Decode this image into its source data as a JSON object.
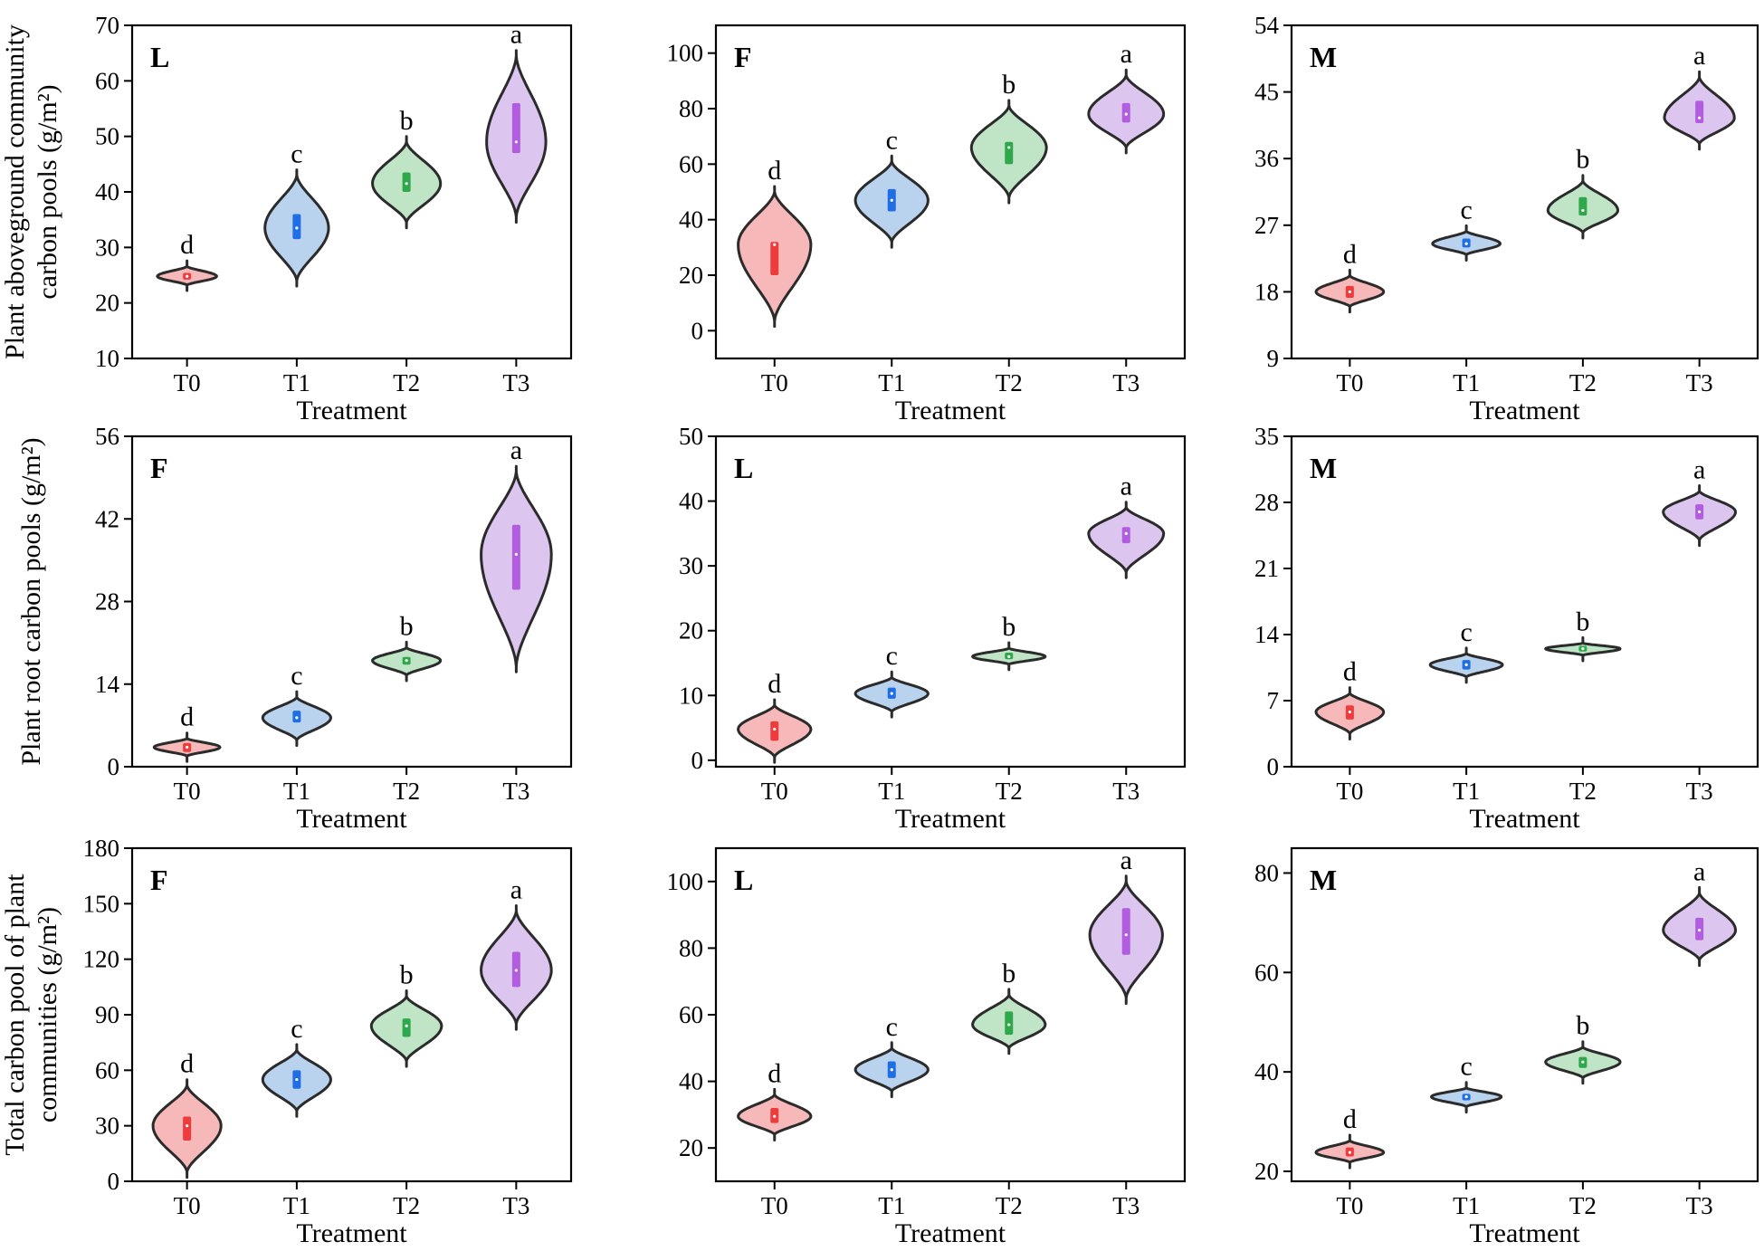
{
  "figure": {
    "row_ylabels": [
      [
        "Plant aboveground community",
        "carbon pools (g/m²)"
      ],
      [
        "Plant root carbon pools (g/m²)"
      ],
      [
        "Total carbon pool of plant",
        "communities (g/m²)"
      ]
    ]
  },
  "colors": {
    "T0": {
      "fill": "#f6b8b8",
      "bar": "#ee3b3b"
    },
    "T1": {
      "fill": "#b9d2ee",
      "bar": "#1f6ee6"
    },
    "T2": {
      "fill": "#bfe5c6",
      "bar": "#2ea84a"
    },
    "T3": {
      "fill": "#dcc5ef",
      "bar": "#b25ce0"
    },
    "outline": "#2b2b2b"
  },
  "chart_data": [
    {
      "type": "violin",
      "row": 0,
      "col": 0,
      "tag": "L",
      "xlabel": "Treatment",
      "ylabel": "Plant aboveground community carbon pools (g/m²)",
      "categories": [
        "T0",
        "T1",
        "T2",
        "T3"
      ],
      "ylim": [
        10,
        70
      ],
      "yticks": [
        10,
        20,
        30,
        40,
        50,
        60,
        70
      ],
      "violins": [
        {
          "median": 24.8,
          "q1": 24.2,
          "q3": 25.4,
          "min": 23.2,
          "max": 26.6,
          "width": 0.27,
          "shape": "even",
          "letter": "d"
        },
        {
          "median": 33.5,
          "q1": 31.5,
          "q3": 36.0,
          "min": 24.0,
          "max": 43.0,
          "width": 0.29,
          "shape": "even",
          "letter": "c"
        },
        {
          "median": 41.5,
          "q1": 40.0,
          "q3": 43.5,
          "min": 34.5,
          "max": 49.0,
          "width": 0.31,
          "shape": "even",
          "letter": "b"
        },
        {
          "median": 49.0,
          "q1": 47.0,
          "q3": 56.0,
          "min": 35.5,
          "max": 64.5,
          "width": 0.27,
          "shape": "even",
          "letter": "a"
        }
      ]
    },
    {
      "type": "violin",
      "row": 0,
      "col": 1,
      "tag": "F",
      "xlabel": "Treatment",
      "ylabel": "",
      "categories": [
        "T0",
        "T1",
        "T2",
        "T3"
      ],
      "ylim": [
        -10,
        110
      ],
      "yticks": [
        0,
        20,
        40,
        60,
        80,
        100
      ],
      "violins": [
        {
          "median": 31.0,
          "q1": 20.0,
          "q3": 32.0,
          "min": 3.5,
          "max": 50.0,
          "width": 0.31,
          "shape": "even",
          "letter": "d"
        },
        {
          "median": 47.0,
          "q1": 43.0,
          "q3": 51.0,
          "min": 32.0,
          "max": 61.0,
          "width": 0.31,
          "shape": "even",
          "letter": "c"
        },
        {
          "median": 66.0,
          "q1": 60.0,
          "q3": 68.0,
          "min": 48.0,
          "max": 81.0,
          "width": 0.32,
          "shape": "even",
          "letter": "b"
        },
        {
          "median": 78.0,
          "q1": 75.0,
          "q3": 82.0,
          "min": 66.0,
          "max": 92.0,
          "width": 0.32,
          "shape": "even",
          "letter": "a"
        }
      ]
    },
    {
      "type": "violin",
      "row": 0,
      "col": 2,
      "tag": "M",
      "xlabel": "Treatment",
      "ylabel": "",
      "categories": [
        "T0",
        "T1",
        "T2",
        "T3"
      ],
      "ylim": [
        9,
        54
      ],
      "yticks": [
        9,
        18,
        27,
        36,
        45,
        54
      ],
      "violins": [
        {
          "median": 18.0,
          "q1": 17.2,
          "q3": 18.8,
          "min": 16.0,
          "max": 20.2,
          "width": 0.29,
          "shape": "even",
          "letter": "d"
        },
        {
          "median": 24.5,
          "q1": 24.0,
          "q3": 25.2,
          "min": 23.0,
          "max": 26.2,
          "width": 0.29,
          "shape": "even",
          "letter": "c"
        },
        {
          "median": 29.0,
          "q1": 28.3,
          "q3": 30.8,
          "min": 26.0,
          "max": 33.0,
          "width": 0.3,
          "shape": "even",
          "letter": "b"
        },
        {
          "median": 41.5,
          "q1": 40.8,
          "q3": 43.8,
          "min": 38.0,
          "max": 47.0,
          "width": 0.3,
          "shape": "even",
          "letter": "a"
        }
      ]
    },
    {
      "type": "violin",
      "row": 1,
      "col": 0,
      "tag": "F",
      "xlabel": "Treatment",
      "ylabel": "Plant root carbon pools (g/m²)",
      "categories": [
        "T0",
        "T1",
        "T2",
        "T3"
      ],
      "ylim": [
        0,
        56
      ],
      "yticks": [
        0,
        14,
        28,
        42,
        56
      ],
      "violins": [
        {
          "median": 3.3,
          "q1": 2.5,
          "q3": 4.0,
          "min": 1.8,
          "max": 4.8,
          "width": 0.3,
          "shape": "even",
          "letter": "d"
        },
        {
          "median": 8.3,
          "q1": 7.5,
          "q3": 9.5,
          "min": 4.5,
          "max": 11.8,
          "width": 0.31,
          "shape": "even",
          "letter": "c"
        },
        {
          "median": 18.0,
          "q1": 17.3,
          "q3": 18.6,
          "min": 15.5,
          "max": 20.2,
          "width": 0.31,
          "shape": "even",
          "letter": "b"
        },
        {
          "median": 36.0,
          "q1": 30.0,
          "q3": 41.0,
          "min": 17.0,
          "max": 50.0,
          "width": 0.32,
          "shape": "even",
          "letter": "a"
        }
      ]
    },
    {
      "type": "violin",
      "row": 1,
      "col": 1,
      "tag": "L",
      "xlabel": "Treatment",
      "ylabel": "",
      "categories": [
        "T0",
        "T1",
        "T2",
        "T3"
      ],
      "ylim": [
        -1,
        50
      ],
      "yticks": [
        0,
        10,
        20,
        30,
        40,
        50
      ],
      "violins": [
        {
          "median": 4.8,
          "q1": 3.0,
          "q3": 6.0,
          "min": 0.5,
          "max": 8.5,
          "width": 0.31,
          "shape": "even",
          "letter": "d"
        },
        {
          "median": 10.3,
          "q1": 9.5,
          "q3": 11.2,
          "min": 7.5,
          "max": 12.8,
          "width": 0.31,
          "shape": "even",
          "letter": "c"
        },
        {
          "median": 16.0,
          "q1": 15.6,
          "q3": 16.6,
          "min": 14.8,
          "max": 17.3,
          "width": 0.31,
          "shape": "even",
          "letter": "b"
        },
        {
          "median": 35.0,
          "q1": 33.5,
          "q3": 36.0,
          "min": 29.0,
          "max": 39.0,
          "width": 0.32,
          "shape": "even",
          "letter": "a"
        }
      ]
    },
    {
      "type": "violin",
      "row": 1,
      "col": 2,
      "tag": "M",
      "xlabel": "Treatment",
      "ylabel": "",
      "categories": [
        "T0",
        "T1",
        "T2",
        "T3"
      ],
      "ylim": [
        0,
        35
      ],
      "yticks": [
        0,
        7,
        14,
        21,
        28,
        35
      ],
      "violins": [
        {
          "median": 5.8,
          "q1": 5.0,
          "q3": 6.5,
          "min": 3.5,
          "max": 7.8,
          "width": 0.29,
          "shape": "even",
          "letter": "d"
        },
        {
          "median": 10.8,
          "q1": 10.3,
          "q3": 11.3,
          "min": 9.5,
          "max": 12.0,
          "width": 0.31,
          "shape": "even",
          "letter": "c"
        },
        {
          "median": 12.5,
          "q1": 12.2,
          "q3": 12.8,
          "min": 11.8,
          "max": 13.1,
          "width": 0.32,
          "shape": "even",
          "letter": "b"
        },
        {
          "median": 27.0,
          "q1": 26.2,
          "q3": 27.8,
          "min": 24.0,
          "max": 29.2,
          "width": 0.31,
          "shape": "even",
          "letter": "a"
        }
      ]
    },
    {
      "type": "violin",
      "row": 2,
      "col": 0,
      "tag": "F",
      "xlabel": "Treatment",
      "ylabel": "Total carbon pool of plant communities (g/m²)",
      "categories": [
        "T0",
        "T1",
        "T2",
        "T3"
      ],
      "ylim": [
        0,
        180
      ],
      "yticks": [
        0,
        30,
        60,
        90,
        120,
        150,
        180
      ],
      "violins": [
        {
          "median": 30.0,
          "q1": 22.0,
          "q3": 35.0,
          "min": 5.0,
          "max": 52.0,
          "width": 0.31,
          "shape": "even",
          "letter": "d"
        },
        {
          "median": 55.0,
          "q1": 50.0,
          "q3": 60.0,
          "min": 38.0,
          "max": 71.0,
          "width": 0.31,
          "shape": "even",
          "letter": "c"
        },
        {
          "median": 84.0,
          "q1": 78.0,
          "q3": 88.0,
          "min": 65.0,
          "max": 100.0,
          "width": 0.32,
          "shape": "even",
          "letter": "b"
        },
        {
          "median": 114.0,
          "q1": 105.0,
          "q3": 124.0,
          "min": 85.0,
          "max": 146.0,
          "width": 0.32,
          "shape": "even",
          "letter": "a"
        }
      ]
    },
    {
      "type": "violin",
      "row": 2,
      "col": 1,
      "tag": "L",
      "xlabel": "Treatment",
      "ylabel": "",
      "categories": [
        "T0",
        "T1",
        "T2",
        "T3"
      ],
      "ylim": [
        10,
        110
      ],
      "yticks": [
        20,
        40,
        60,
        80,
        100
      ],
      "violins": [
        {
          "median": 29.5,
          "q1": 27.5,
          "q3": 32.0,
          "min": 24.0,
          "max": 36.0,
          "width": 0.31,
          "shape": "even",
          "letter": "d"
        },
        {
          "median": 43.5,
          "q1": 41.0,
          "q3": 46.0,
          "min": 37.0,
          "max": 50.0,
          "width": 0.31,
          "shape": "even",
          "letter": "c"
        },
        {
          "median": 57.0,
          "q1": 54.0,
          "q3": 61.0,
          "min": 50.0,
          "max": 66.0,
          "width": 0.31,
          "shape": "even",
          "letter": "b"
        },
        {
          "median": 84.0,
          "q1": 78.0,
          "q3": 92.0,
          "min": 65.0,
          "max": 100.0,
          "width": 0.31,
          "shape": "even",
          "letter": "a"
        }
      ]
    },
    {
      "type": "violin",
      "row": 2,
      "col": 2,
      "tag": "M",
      "xlabel": "Treatment",
      "ylabel": "",
      "categories": [
        "T0",
        "T1",
        "T2",
        "T3"
      ],
      "ylim": [
        18,
        85
      ],
      "yticks": [
        20,
        40,
        60,
        80
      ],
      "violins": [
        {
          "median": 23.8,
          "q1": 23.0,
          "q3": 24.8,
          "min": 21.8,
          "max": 26.2,
          "width": 0.29,
          "shape": "even",
          "letter": "d"
        },
        {
          "median": 35.0,
          "q1": 34.3,
          "q3": 35.6,
          "min": 33.0,
          "max": 36.8,
          "width": 0.3,
          "shape": "even",
          "letter": "c"
        },
        {
          "median": 42.0,
          "q1": 40.8,
          "q3": 43.0,
          "min": 38.8,
          "max": 45.0,
          "width": 0.32,
          "shape": "even",
          "letter": "b"
        },
        {
          "median": 68.5,
          "q1": 66.5,
          "q3": 71.0,
          "min": 62.5,
          "max": 76.0,
          "width": 0.31,
          "shape": "even",
          "letter": "a"
        }
      ]
    }
  ]
}
